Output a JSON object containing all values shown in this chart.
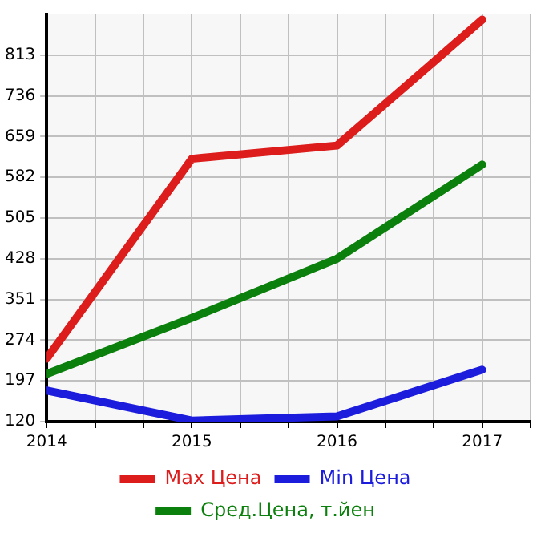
{
  "chart_data": {
    "type": "line",
    "x": [
      2014,
      2015,
      2016,
      2017
    ],
    "xlim": [
      2014,
      2017.333
    ],
    "xticks": [
      2014,
      {
        "value": 2014.333,
        "label": null
      },
      {
        "value": 2014.667,
        "label": null
      },
      2015,
      {
        "value": 2015.333,
        "label": null
      },
      {
        "value": 2015.667,
        "label": null
      },
      2016,
      {
        "value": 2016.333,
        "label": null
      },
      {
        "value": 2016.667,
        "label": null
      },
      2017,
      {
        "value": 2017.333,
        "label": null
      }
    ],
    "ylim": [
      120,
      890
    ],
    "yticks": [
      120,
      197,
      274,
      351,
      428,
      505,
      582,
      659,
      736,
      813
    ],
    "grid": true,
    "legend": "bottom",
    "marker": "none",
    "line_style": "solid",
    "series": [
      {
        "name": "Max Цена",
        "color": "#dd1c1c",
        "values": [
          239,
          617,
          642,
          880
        ]
      },
      {
        "name": "Min Цена",
        "color": "#1c1cdd",
        "values": [
          179,
          122,
          130,
          218
        ]
      },
      {
        "name": "Сред.Цена, т.йен",
        "color": "#0c800c",
        "values": [
          210,
          316,
          428,
          606
        ]
      }
    ]
  }
}
